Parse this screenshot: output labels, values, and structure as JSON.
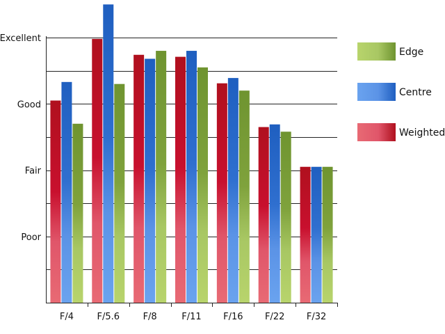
{
  "chart_data": {
    "type": "bar",
    "title": "",
    "xlabel": "",
    "ylabel": "",
    "categories": [
      "F/4",
      "F/5.6",
      "F/8",
      "F/11",
      "F/16",
      "F/22",
      "F/32"
    ],
    "y_ticks": [
      {
        "value": 1,
        "label": "Poor"
      },
      {
        "value": 2,
        "label": "Fair"
      },
      {
        "value": 3,
        "label": "Good"
      },
      {
        "value": 4,
        "label": "Excellent"
      }
    ],
    "ylim": [
      0,
      4
    ],
    "grid": true,
    "legend_position": "right",
    "series": [
      {
        "name": "Weighted",
        "color": "#c8102e",
        "values": [
          3.05,
          3.98,
          3.74,
          3.71,
          3.31,
          2.65,
          2.05
        ]
      },
      {
        "name": "Centre",
        "color": "#2f6fcf",
        "values": [
          3.33,
          4.5,
          3.68,
          3.8,
          3.39,
          2.69,
          2.05
        ]
      },
      {
        "name": "Edge",
        "color": "#7fa23c",
        "values": [
          2.7,
          3.3,
          3.8,
          3.55,
          3.2,
          2.58,
          2.05
        ]
      }
    ]
  }
}
